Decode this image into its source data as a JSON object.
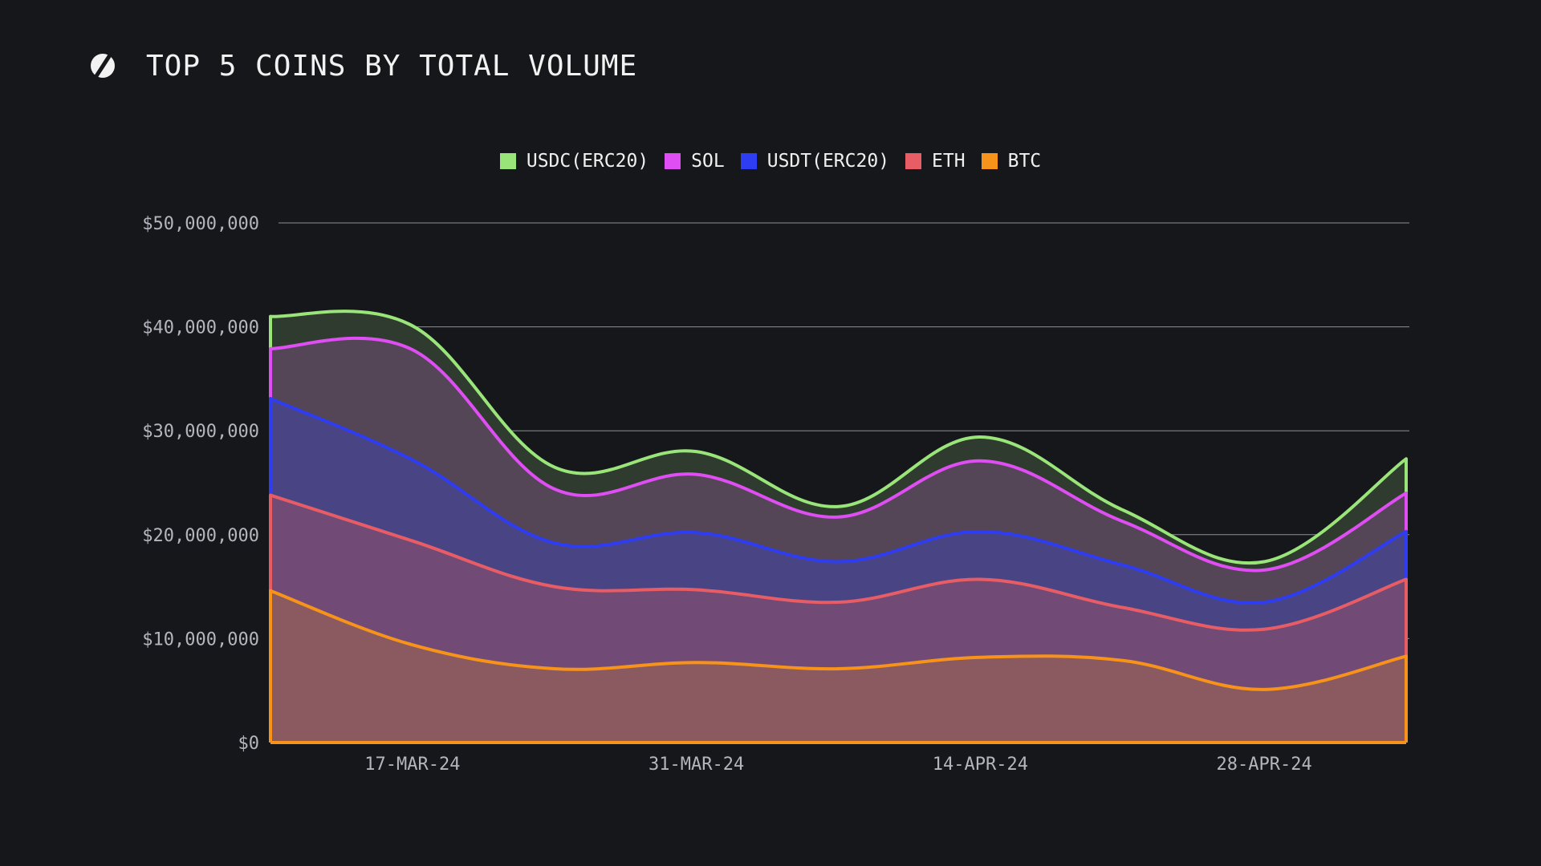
{
  "header": {
    "title": "TOP 5 COINS BY TOTAL VOLUME",
    "logo_icon": "stake-logo-icon"
  },
  "chart_data": {
    "type": "area",
    "stacked": true,
    "title": "TOP 5 COINS BY TOTAL VOLUME",
    "xlabel": "",
    "ylabel": "",
    "x_ticks": [
      "17-MAR-24",
      "31-MAR-24",
      "14-APR-24",
      "28-APR-24"
    ],
    "y_ticks": [
      "$0",
      "$10,000,000",
      "$20,000,000",
      "$30,000,000",
      "$40,000,000",
      "$50,000,000"
    ],
    "ylim": [
      0,
      50000000
    ],
    "x": [
      "10-MAR-24",
      "17-MAR-24",
      "24-MAR-24",
      "31-MAR-24",
      "07-APR-24",
      "14-APR-24",
      "21-APR-24",
      "28-APR-24",
      "05-MAY-24"
    ],
    "legend_position": "top",
    "grid": true,
    "series": [
      {
        "name": "BTC",
        "color": "#f7931a",
        "fill": "#8a5a60",
        "values": [
          14600000,
          9400000,
          7100000,
          7700000,
          7100000,
          8200000,
          7900000,
          5100000,
          8300000
        ]
      },
      {
        "name": "ETH",
        "color": "#e85d65",
        "fill": "#714a76",
        "values": [
          9200000,
          10000000,
          7900000,
          7000000,
          6400000,
          7500000,
          5100000,
          5800000,
          7400000
        ]
      },
      {
        "name": "USDT(ERC20)",
        "color": "#2e3cf2",
        "fill": "#494585",
        "values": [
          9300000,
          7800000,
          4200000,
          5500000,
          3900000,
          4600000,
          4100000,
          2600000,
          4600000
        ]
      },
      {
        "name": "SOL",
        "color": "#de4ef2",
        "fill": "#554657",
        "values": [
          4800000,
          10600000,
          5200000,
          5600000,
          4300000,
          6800000,
          4200000,
          3100000,
          3700000
        ]
      },
      {
        "name": "USDC(ERC20)",
        "color": "#9ae57a",
        "fill": "#2f3b2e",
        "values": [
          3100000,
          2300000,
          2100000,
          2200000,
          1000000,
          2300000,
          1100000,
          800000,
          3300000
        ]
      }
    ],
    "legend_order": [
      "USDC(ERC20)",
      "SOL",
      "USDT(ERC20)",
      "ETH",
      "BTC"
    ]
  }
}
